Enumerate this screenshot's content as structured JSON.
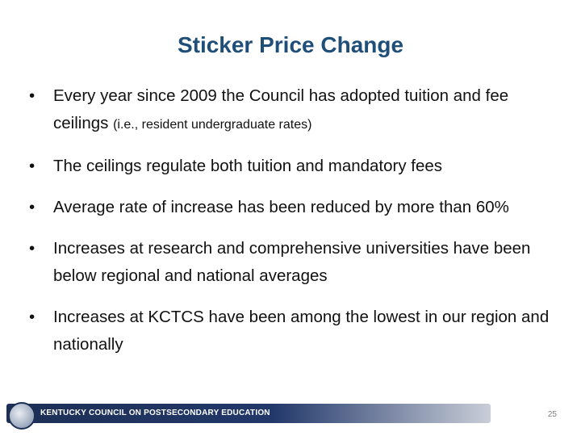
{
  "header": {
    "title": "Sticker Price Change"
  },
  "bullets": [
    {
      "text": "Every year since 2009 the Council has adopted tuition and fee ceilings",
      "note": "(i.e., resident undergraduate rates)"
    },
    {
      "text": "The ceilings regulate both tuition and mandatory fees"
    },
    {
      "text": "Average rate of increase has been reduced by more than 60%"
    },
    {
      "text": "Increases at research and comprehensive universities have been below regional and national averages"
    },
    {
      "text": "Increases at KCTCS have been among the lowest in our region and nationally"
    }
  ],
  "footer": {
    "organization": "KENTUCKY COUNCIL ON POSTSECONDARY EDUCATION",
    "page_number": 25
  }
}
